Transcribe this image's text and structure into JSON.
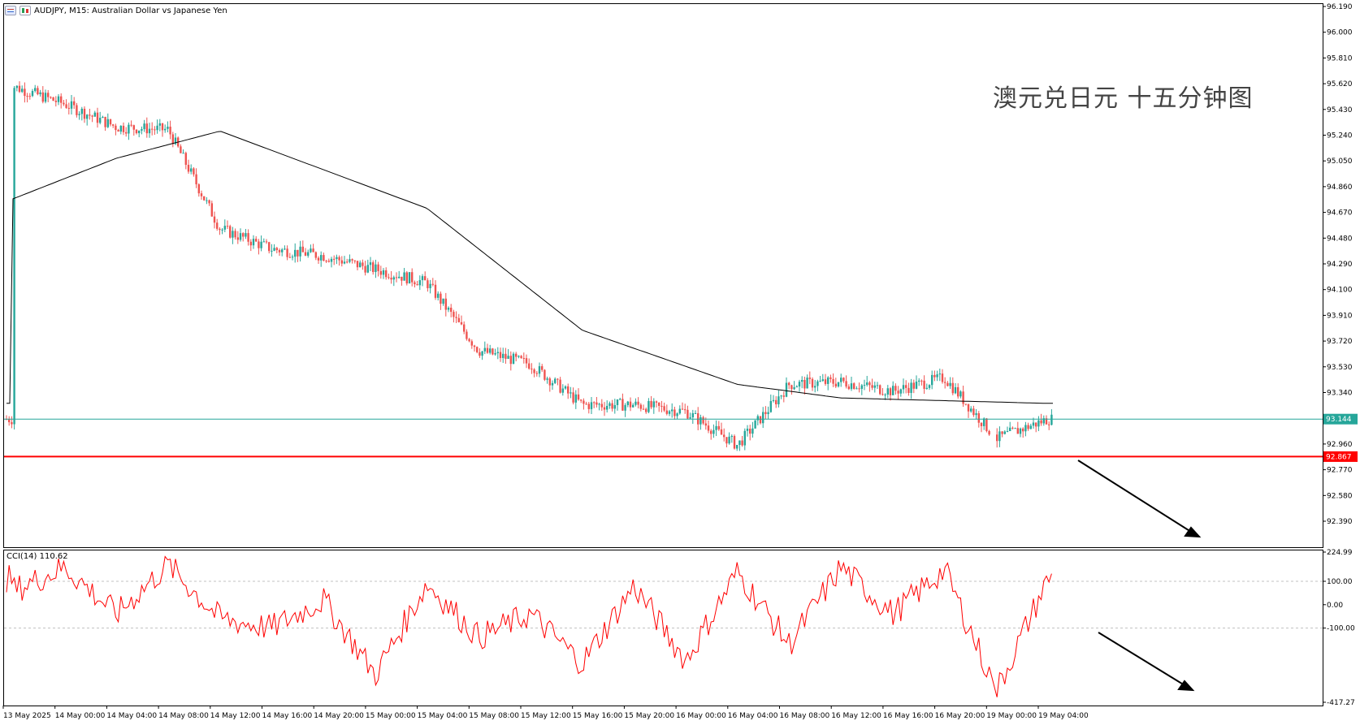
{
  "header": {
    "symbol": "AUDJPY",
    "timeframe": "M15",
    "description": "Australian Dollar vs Japanese Yen",
    "text": "AUDJPY, M15:  Australian Dollar vs Japanese Yen"
  },
  "overlay_title": "澳元兑日元 十五分钟图",
  "main_axis": {
    "labels": [
      "96.190",
      "96.000",
      "95.810",
      "95.620",
      "95.430",
      "95.240",
      "95.050",
      "94.860",
      "94.670",
      "94.480",
      "94.290",
      "94.100",
      "93.910",
      "93.720",
      "93.530",
      "93.340",
      "92.960",
      "92.770",
      "92.580",
      "92.390"
    ],
    "min": 92.39,
    "max": 96.19
  },
  "price_lines": {
    "current": {
      "value": 93.144,
      "label": "93.144",
      "color": "#26a69a"
    },
    "support": {
      "value": 92.867,
      "label": "92.867",
      "color": "#ff0000"
    }
  },
  "cci": {
    "label": "CCI(14) 110.62",
    "axis_labels": [
      "224.99",
      "100.00",
      "0.00",
      "-100.00",
      "-417.27"
    ],
    "levels": [
      100,
      -100
    ],
    "line_color": "#ff0000"
  },
  "time_axis": [
    "13 May 2025",
    "14 May 00:00",
    "14 May 04:00",
    "14 May 08:00",
    "14 May 12:00",
    "14 May 16:00",
    "14 May 20:00",
    "15 May 00:00",
    "15 May 04:00",
    "15 May 08:00",
    "15 May 12:00",
    "15 May 16:00",
    "15 May 20:00",
    "16 May 00:00",
    "16 May 04:00",
    "16 May 08:00",
    "16 May 12:00",
    "16 May 16:00",
    "16 May 20:00",
    "19 May 00:00",
    "19 May 04:00"
  ],
  "colors": {
    "bull": "#26a69a",
    "bear": "#ef5350",
    "ma": "#000000",
    "grid_dash": "#c0c0c0"
  },
  "chart_data": {
    "type": "candlestick",
    "symbol": "AUDJPY",
    "timeframe": "M15",
    "ylim": [
      92.39,
      96.19
    ],
    "close_path": [
      {
        "x": "13 May 2025",
        "y": 95.6
      },
      {
        "x": "14 May 00:00",
        "y": 95.47
      },
      {
        "x": "14 May 04:00",
        "y": 95.3
      },
      {
        "x": "14 May 08:00",
        "y": 95.28
      },
      {
        "x": "14 May 12:00",
        "y": 94.55
      },
      {
        "x": "14 May 16:00",
        "y": 94.4
      },
      {
        "x": "14 May 20:00",
        "y": 94.35
      },
      {
        "x": "15 May 00:00",
        "y": 94.25
      },
      {
        "x": "15 May 04:00",
        "y": 94.15
      },
      {
        "x": "15 May 08:00",
        "y": 93.65
      },
      {
        "x": "15 May 12:00",
        "y": 93.55
      },
      {
        "x": "15 May 16:00",
        "y": 93.25
      },
      {
        "x": "15 May 20:00",
        "y": 93.25
      },
      {
        "x": "16 May 00:00",
        "y": 93.2
      },
      {
        "x": "16 May 04:00",
        "y": 92.95
      },
      {
        "x": "16 May 08:00",
        "y": 93.4
      },
      {
        "x": "16 May 12:00",
        "y": 93.42
      },
      {
        "x": "16 May 16:00",
        "y": 93.35
      },
      {
        "x": "16 May 20:00",
        "y": 93.45
      },
      {
        "x": "19 May 00:00",
        "y": 93.0
      },
      {
        "x": "19 May 04:00",
        "y": 93.144
      }
    ],
    "ma_path": [
      {
        "x": "13 May 2025",
        "y": 94.77
      },
      {
        "x": "14 May 04:00",
        "y": 95.07
      },
      {
        "x": "14 May 12:00",
        "y": 95.27
      },
      {
        "x": "15 May 04:00",
        "y": 94.7
      },
      {
        "x": "15 May 16:00",
        "y": 93.8
      },
      {
        "x": "16 May 04:00",
        "y": 93.4
      },
      {
        "x": "16 May 12:00",
        "y": 93.3
      },
      {
        "x": "19 May 04:00",
        "y": 93.26
      }
    ],
    "cci_path": [
      {
        "x": "13 May 2025",
        "y": 60
      },
      {
        "x": "14 May 00:00",
        "y": 160
      },
      {
        "x": "14 May 04:00",
        "y": -40
      },
      {
        "x": "14 May 08:00",
        "y": 170
      },
      {
        "x": "14 May 12:00",
        "y": -60
      },
      {
        "x": "14 May 16:00",
        "y": -100
      },
      {
        "x": "14 May 20:00",
        "y": 20
      },
      {
        "x": "15 May 00:00",
        "y": -300
      },
      {
        "x": "15 May 04:00",
        "y": 90
      },
      {
        "x": "15 May 08:00",
        "y": -140
      },
      {
        "x": "15 May 12:00",
        "y": -40
      },
      {
        "x": "15 May 16:00",
        "y": -250
      },
      {
        "x": "15 May 20:00",
        "y": 80
      },
      {
        "x": "16 May 00:00",
        "y": -240
      },
      {
        "x": "16 May 04:00",
        "y": 140
      },
      {
        "x": "16 May 08:00",
        "y": -170
      },
      {
        "x": "16 May 12:00",
        "y": 160
      },
      {
        "x": "16 May 16:00",
        "y": -40
      },
      {
        "x": "16 May 20:00",
        "y": 150
      },
      {
        "x": "19 May 00:00",
        "y": -370
      },
      {
        "x": "19 May 04:00",
        "y": 110.62
      }
    ]
  }
}
